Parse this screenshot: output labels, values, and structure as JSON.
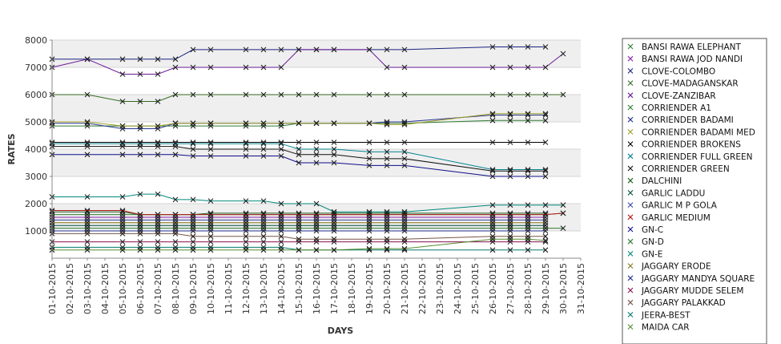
{
  "chart_data": {
    "type": "line",
    "title": "",
    "xlabel": "DAYS",
    "ylabel": "RATES",
    "ylim": [
      0,
      8000
    ],
    "yticks": [
      1000,
      2000,
      3000,
      4000,
      5000,
      6000,
      7000,
      8000
    ],
    "grid": true,
    "legend_position": "right",
    "categories": [
      "01-10-2015",
      "02-10-2015",
      "03-10-2015",
      "04-10-2015",
      "05-10-2015",
      "06-10-2015",
      "07-10-2015",
      "08-10-2015",
      "09-10-2015",
      "10-10-2015",
      "11-10-2015",
      "12-10-2015",
      "13-10-2015",
      "14-10-2015",
      "15-10-2015",
      "16-10-2015",
      "17-10-2015",
      "18-10-2015",
      "19-10-2015",
      "20-10-2015",
      "21-10-2015",
      "22-10-2015",
      "23-10-2015",
      "24-10-2015",
      "25-10-2015",
      "26-10-2015",
      "27-10-2015",
      "28-10-2015",
      "29-10-2015",
      "30-10-2015",
      "31-10-2015"
    ],
    "series": [
      {
        "name": "BANSI RAWA ELEPHANT",
        "color": "#2e7d32",
        "values": [
          1600,
          null,
          1600,
          null,
          1600,
          1600,
          1600,
          1600,
          1600,
          1600,
          null,
          1600,
          1600,
          1600,
          1600,
          1600,
          1600,
          null,
          1600,
          1600,
          1600,
          null,
          null,
          null,
          null,
          1600,
          1600,
          1600,
          1600,
          1650,
          null
        ]
      },
      {
        "name": "BANSI RAWA JOD NANDI",
        "color": "#8e24aa",
        "values": [
          1500,
          null,
          1500,
          null,
          1500,
          1500,
          1500,
          1500,
          1500,
          1500,
          null,
          1500,
          1500,
          1500,
          1500,
          1500,
          1500,
          null,
          1500,
          1500,
          1500,
          null,
          null,
          null,
          null,
          1500,
          1500,
          1500,
          1500,
          null,
          null
        ]
      },
      {
        "name": "CLOVE-COLOMBO",
        "color": "#1a237e",
        "values": [
          7300,
          null,
          7300,
          null,
          7300,
          7300,
          7300,
          7300,
          7650,
          7650,
          null,
          7650,
          7650,
          7650,
          7650,
          7650,
          7650,
          null,
          7650,
          7650,
          7650,
          null,
          null,
          null,
          null,
          7750,
          7750,
          7750,
          7750,
          null,
          null
        ]
      },
      {
        "name": "CLOVE-MADAGANSKAR",
        "color": "#33691e",
        "values": [
          6000,
          null,
          6000,
          null,
          5750,
          5750,
          5750,
          6000,
          6000,
          6000,
          null,
          6000,
          6000,
          6000,
          6000,
          6000,
          6000,
          null,
          6000,
          6000,
          6000,
          null,
          null,
          null,
          null,
          6000,
          6000,
          6000,
          6000,
          6000,
          null
        ]
      },
      {
        "name": "CLOVE-ZANZIBAR",
        "color": "#6a1b9a",
        "values": [
          7000,
          null,
          7300,
          null,
          6750,
          6750,
          6750,
          7000,
          7000,
          7000,
          null,
          7000,
          7000,
          7000,
          7650,
          7650,
          7650,
          null,
          7650,
          7000,
          7000,
          null,
          null,
          null,
          null,
          7000,
          7000,
          7000,
          7000,
          7500,
          null
        ]
      },
      {
        "name": "CORRIENDER A1",
        "color": "#2e7d32",
        "values": [
          4850,
          null,
          4850,
          null,
          4850,
          4850,
          4850,
          4850,
          4850,
          4850,
          null,
          4850,
          4850,
          4850,
          4950,
          4950,
          4950,
          null,
          4950,
          4950,
          4950,
          null,
          null,
          null,
          null,
          5050,
          5050,
          5050,
          5050,
          null,
          null
        ]
      },
      {
        "name": "CORRIENDER BADAMI",
        "color": "#283593",
        "values": [
          4950,
          null,
          4950,
          null,
          4750,
          4750,
          4750,
          4950,
          4950,
          4950,
          null,
          4950,
          4950,
          4950,
          4950,
          4950,
          4950,
          null,
          4950,
          5000,
          5000,
          null,
          null,
          null,
          null,
          5250,
          5250,
          5250,
          5250,
          null,
          null
        ]
      },
      {
        "name": "CORRIENDER BADAMI MED",
        "color": "#9e9d24",
        "values": [
          5000,
          null,
          5000,
          null,
          4850,
          4850,
          4850,
          4950,
          4950,
          4950,
          null,
          4950,
          4950,
          4950,
          4950,
          4950,
          4950,
          null,
          4950,
          4900,
          4900,
          null,
          null,
          null,
          null,
          5300,
          5300,
          5300,
          5300,
          null,
          null
        ]
      },
      {
        "name": "CORRIENDER BROKENS",
        "color": "#000000",
        "values": [
          4250,
          null,
          4250,
          null,
          4250,
          4250,
          4250,
          4250,
          4250,
          4250,
          null,
          4250,
          4250,
          4250,
          4250,
          4250,
          4250,
          null,
          4250,
          4250,
          4250,
          null,
          null,
          null,
          null,
          4250,
          4250,
          4250,
          4250,
          null,
          null
        ]
      },
      {
        "name": "CORRIENDER FULL GREEN",
        "color": "#00838f",
        "values": [
          4200,
          null,
          4200,
          null,
          4200,
          4200,
          4200,
          4200,
          4200,
          4200,
          null,
          4200,
          4200,
          4200,
          4000,
          4000,
          4000,
          null,
          3900,
          3900,
          3900,
          null,
          null,
          null,
          null,
          3250,
          3250,
          3250,
          3250,
          null,
          null
        ]
      },
      {
        "name": "CORRIENDER GREEN",
        "color": "#111111",
        "values": [
          4100,
          null,
          4100,
          null,
          4100,
          4100,
          4100,
          4100,
          4000,
          4000,
          null,
          4000,
          4000,
          4000,
          3800,
          3800,
          3800,
          null,
          3650,
          3650,
          3650,
          null,
          null,
          null,
          null,
          3200,
          3200,
          3200,
          3200,
          null,
          null
        ]
      },
      {
        "name": "DALCHINI",
        "color": "#1b5e20",
        "values": [
          1700,
          null,
          1700,
          null,
          1700,
          1600,
          1600,
          1600,
          1600,
          1650,
          null,
          1650,
          1650,
          1650,
          1650,
          1650,
          1650,
          null,
          1650,
          1650,
          1650,
          null,
          null,
          null,
          null,
          1650,
          1650,
          1650,
          1650,
          null,
          null
        ]
      },
      {
        "name": "GARLIC LADDU",
        "color": "#004d40",
        "values": [
          1200,
          null,
          1200,
          null,
          1200,
          1200,
          1200,
          1200,
          1200,
          1200,
          null,
          1200,
          1200,
          1200,
          1200,
          1200,
          1200,
          null,
          1200,
          1200,
          1200,
          null,
          null,
          null,
          null,
          1200,
          1200,
          1200,
          1200,
          null,
          null
        ]
      },
      {
        "name": "GARLIC M P GOLA",
        "color": "#3949ab",
        "values": [
          1400,
          null,
          1400,
          null,
          1400,
          1400,
          1400,
          1400,
          1400,
          1400,
          null,
          1400,
          1400,
          1400,
          1400,
          1400,
          1400,
          null,
          1400,
          1400,
          1400,
          null,
          null,
          null,
          null,
          1400,
          1400,
          1400,
          1400,
          null,
          null
        ]
      },
      {
        "name": "GARLIC MEDIUM",
        "color": "#b71c1c",
        "values": [
          1750,
          null,
          1750,
          null,
          1750,
          1600,
          1600,
          1600,
          1600,
          1600,
          null,
          1600,
          1600,
          1600,
          1600,
          1600,
          1600,
          null,
          1600,
          1600,
          1600,
          null,
          null,
          null,
          null,
          1600,
          1600,
          1600,
          1600,
          1650,
          null
        ]
      },
      {
        "name": "GN-C",
        "color": "#0d0d8a",
        "values": [
          3800,
          null,
          3800,
          null,
          3800,
          3800,
          3800,
          3800,
          3750,
          3750,
          null,
          3750,
          3750,
          3750,
          3500,
          3500,
          3500,
          null,
          3400,
          3400,
          3400,
          null,
          null,
          null,
          null,
          3000,
          3000,
          3000,
          3000,
          null,
          null
        ]
      },
      {
        "name": "GN-D",
        "color": "#2e7d32",
        "values": [
          1100,
          null,
          1100,
          null,
          1100,
          1100,
          1100,
          1100,
          1100,
          1100,
          null,
          1100,
          1100,
          1100,
          1100,
          1100,
          1100,
          null,
          1100,
          1100,
          1100,
          null,
          null,
          null,
          null,
          1100,
          1100,
          1100,
          1100,
          1100,
          null
        ]
      },
      {
        "name": "GN-E",
        "color": "#00897b",
        "values": [
          2250,
          null,
          2250,
          null,
          2250,
          2350,
          2350,
          2150,
          2150,
          2100,
          null,
          2100,
          2100,
          2000,
          2000,
          2000,
          1700,
          null,
          1700,
          1700,
          1700,
          null,
          null,
          null,
          null,
          1950,
          1950,
          1950,
          1950,
          1950,
          null
        ]
      },
      {
        "name": "JAGGARY ERODE",
        "color": "#827717",
        "values": [
          1300,
          null,
          1300,
          null,
          1300,
          1300,
          1300,
          1300,
          1300,
          1300,
          null,
          1300,
          1300,
          1300,
          1300,
          1300,
          1300,
          null,
          1300,
          1300,
          1300,
          null,
          null,
          null,
          null,
          1300,
          1300,
          1300,
          1300,
          null,
          null
        ]
      },
      {
        "name": "JAGGARY MANDYA SQUARE",
        "color": "#283593",
        "values": [
          1000,
          null,
          1000,
          null,
          1000,
          1000,
          1000,
          1000,
          1000,
          1000,
          null,
          1000,
          1000,
          1000,
          1000,
          1000,
          1000,
          null,
          1000,
          1000,
          1000,
          null,
          null,
          null,
          null,
          1000,
          1000,
          1000,
          1000,
          null,
          null
        ]
      },
      {
        "name": "JAGGARY MUDDE SELEM",
        "color": "#880e4f",
        "values": [
          600,
          null,
          600,
          null,
          600,
          600,
          600,
          600,
          600,
          600,
          null,
          600,
          600,
          600,
          600,
          600,
          600,
          null,
          600,
          600,
          600,
          null,
          null,
          null,
          null,
          600,
          600,
          600,
          600,
          null,
          null
        ]
      },
      {
        "name": "JAGGARY PALAKKAD",
        "color": "#795548",
        "values": [
          900,
          null,
          900,
          null,
          900,
          900,
          900,
          900,
          800,
          800,
          null,
          800,
          800,
          800,
          700,
          700,
          700,
          null,
          700,
          700,
          700,
          null,
          null,
          null,
          null,
          800,
          800,
          800,
          800,
          null,
          null
        ]
      },
      {
        "name": "JEERA-BEST",
        "color": "#00796b",
        "values": [
          400,
          null,
          400,
          null,
          400,
          400,
          400,
          400,
          400,
          400,
          null,
          400,
          400,
          400,
          300,
          300,
          300,
          null,
          300,
          300,
          300,
          null,
          null,
          null,
          null,
          300,
          300,
          300,
          300,
          null,
          null
        ]
      },
      {
        "name": "MAIDA CAR",
        "color": "#558b2f",
        "values": [
          300,
          null,
          300,
          null,
          300,
          300,
          300,
          300,
          300,
          300,
          null,
          300,
          300,
          300,
          300,
          300,
          300,
          null,
          350,
          350,
          350,
          null,
          null,
          null,
          null,
          700,
          700,
          700,
          650,
          null,
          null
        ]
      }
    ]
  }
}
